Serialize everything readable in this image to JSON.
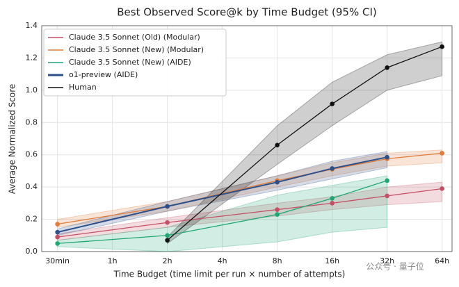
{
  "chart_data": {
    "type": "line",
    "title": "Best Observed Score@k by Time Budget (95% CI)",
    "xlabel": "Time Budget (time limit per run × number of attempts)",
    "ylabel": "Average Normalized Score",
    "xscale": "log",
    "grid": true,
    "legend": "upper left",
    "xlim": [
      0.41,
      72.6
    ],
    "xticks": [
      {
        "value": 0.5,
        "label": "30min"
      },
      {
        "value": 1,
        "label": "1h"
      },
      {
        "value": 2,
        "label": "2h"
      },
      {
        "value": 4,
        "label": "4h"
      },
      {
        "value": 8,
        "label": "8h"
      },
      {
        "value": 16,
        "label": "16h"
      },
      {
        "value": 32,
        "label": "32h"
      },
      {
        "value": 64,
        "label": "64h"
      }
    ],
    "ylim": [
      0,
      1.4
    ],
    "yticks": [
      {
        "value": 0,
        "label": "0.0"
      },
      0.2,
      0.4,
      0.6,
      0.8,
      {
        "value": 1,
        "label": "1.0"
      },
      1.2,
      1.4
    ],
    "series": [
      {
        "name": "Claude 3.5 Sonnet (Old) (Modular)",
        "color": "#c44e63",
        "x": [
          0.5,
          2,
          8,
          16,
          32,
          64
        ],
        "values": [
          0.09,
          0.18,
          0.26,
          0.3,
          0.345,
          0.39
        ],
        "ci_lower": [
          0.07,
          0.15,
          0.22,
          0.26,
          0.29,
          0.31
        ],
        "ci_upper": [
          0.11,
          0.21,
          0.3,
          0.34,
          0.4,
          0.43
        ]
      },
      {
        "name": "Claude 3.5 Sonnet (New) (Modular)",
        "color": "#e07b39",
        "x": [
          0.5,
          2,
          8,
          16,
          32,
          64
        ],
        "values": [
          0.17,
          0.28,
          0.44,
          0.51,
          0.575,
          0.61
        ],
        "ci_lower": [
          0.15,
          0.25,
          0.4,
          0.47,
          0.53,
          0.55
        ],
        "ci_upper": [
          0.2,
          0.31,
          0.47,
          0.55,
          0.61,
          0.63
        ]
      },
      {
        "name": "Claude 3.5 Sonnet (New) (AIDE)",
        "color": "#1fa672",
        "x": [
          0.5,
          2,
          8,
          16,
          32
        ],
        "values": [
          0.05,
          0.1,
          0.23,
          0.33,
          0.44
        ],
        "ci_lower": [
          0.03,
          0.0,
          0.06,
          0.12,
          0.15
        ],
        "ci_upper": [
          0.07,
          0.15,
          0.35,
          0.41,
          0.47
        ]
      },
      {
        "name": "o1-preview (AIDE)",
        "color": "#2d4f8a",
        "x": [
          0.5,
          2,
          8,
          16,
          32
        ],
        "values": [
          0.12,
          0.28,
          0.43,
          0.515,
          0.585
        ],
        "ci_lower": [
          0.1,
          0.25,
          0.38,
          0.45,
          0.52
        ],
        "ci_upper": [
          0.14,
          0.31,
          0.47,
          0.56,
          0.62
        ]
      },
      {
        "name": "Human",
        "color": "#111111",
        "x": [
          2,
          8,
          16,
          32,
          64
        ],
        "values": [
          0.07,
          0.66,
          0.915,
          1.14,
          1.27
        ],
        "ci_lower": [
          0.05,
          0.54,
          0.78,
          1.0,
          1.09
        ],
        "ci_upper": [
          0.09,
          0.78,
          1.05,
          1.22,
          1.3
        ]
      }
    ],
    "watermark": "公众号 · 量子位"
  }
}
